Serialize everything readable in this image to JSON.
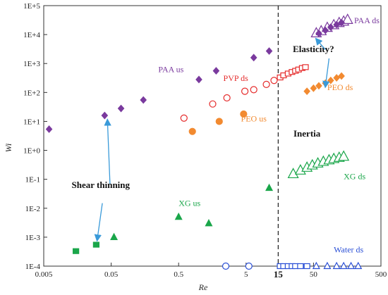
{
  "chart_data": {
    "type": "scatter",
    "xlabel": "Re",
    "ylabel": "Wi",
    "xscale": "log",
    "yscale": "log",
    "xlim": [
      0.005,
      500
    ],
    "ylim": [
      0.0001,
      100000
    ],
    "x_tick_labels": [
      "0.005",
      "0.05",
      "0.5",
      "5",
      "50",
      "500"
    ],
    "y_tick_labels": [
      "1E-4",
      "1E-3",
      "1E-2",
      "1E-1",
      "1E+0",
      "1E+1",
      "1E+2",
      "1E+3",
      "1E+4",
      "1E+5"
    ],
    "critical_re": {
      "value": 15,
      "label": "15",
      "style": "dashed"
    },
    "grid": false,
    "series": [
      {
        "name": "PAA us",
        "color": "#7a3a9e",
        "marker": "diamond",
        "filled": true,
        "points": [
          [
            0.006,
            5.4
          ],
          [
            0.04,
            16
          ],
          [
            0.07,
            28
          ],
          [
            0.15,
            55
          ],
          [
            1.0,
            280
          ],
          [
            1.8,
            560
          ],
          [
            6.5,
            1600
          ],
          [
            11,
            2700
          ]
        ]
      },
      {
        "name": "PAA ds",
        "color": "#7a3a9e",
        "marker": "triangle-large",
        "filled": false,
        "points": [
          [
            55,
            11000
          ],
          [
            65,
            13000
          ],
          [
            80,
            17000
          ],
          [
            100,
            21000
          ],
          [
            120,
            25000
          ],
          [
            140,
            28000
          ],
          [
            160,
            32000
          ]
        ]
      },
      {
        "name": "PAA ds filled",
        "color": "#7a3a9e",
        "marker": "diamond",
        "filled": true,
        "points": [
          [
            60,
            11000
          ],
          [
            75,
            14000
          ],
          [
            90,
            18000
          ],
          [
            110,
            22000
          ],
          [
            130,
            26000
          ]
        ]
      },
      {
        "name": "PVP ds",
        "color": "#e52b2b",
        "marker": "circle",
        "filled": false,
        "points": [
          [
            0.6,
            13
          ],
          [
            1.6,
            40
          ],
          [
            2.6,
            65
          ],
          [
            4.8,
            110
          ],
          [
            6.5,
            125
          ],
          [
            10,
            190
          ],
          [
            13,
            260
          ]
        ]
      },
      {
        "name": "PVP ds squares",
        "color": "#e52b2b",
        "marker": "square",
        "filled": false,
        "points": [
          [
            16,
            330
          ],
          [
            18,
            390
          ],
          [
            21,
            450
          ],
          [
            24,
            510
          ],
          [
            27,
            560
          ],
          [
            30,
            620
          ],
          [
            34,
            700
          ],
          [
            38,
            750
          ]
        ]
      },
      {
        "name": "PEO us",
        "color": "#f28a30",
        "marker": "circle",
        "filled": true,
        "points": [
          [
            0.8,
            4.5
          ],
          [
            2.0,
            10
          ],
          [
            4.6,
            18
          ]
        ]
      },
      {
        "name": "PEO ds",
        "color": "#f28a30",
        "marker": "diamond",
        "filled": true,
        "points": [
          [
            40,
            110
          ],
          [
            50,
            140
          ],
          [
            60,
            170
          ],
          [
            75,
            210
          ],
          [
            90,
            260
          ],
          [
            110,
            320
          ],
          [
            130,
            370
          ]
        ]
      },
      {
        "name": "XG us",
        "color": "#1aa64a",
        "marker": "triangle",
        "filled": true,
        "points": [
          [
            0.055,
            0.001
          ],
          [
            0.5,
            0.005
          ],
          [
            1.4,
            0.003
          ],
          [
            11,
            0.05
          ]
        ]
      },
      {
        "name": "XG ds",
        "color": "#1aa64a",
        "marker": "triangle-large",
        "filled": false,
        "points": [
          [
            25,
            0.15
          ],
          [
            32,
            0.2
          ],
          [
            40,
            0.25
          ],
          [
            48,
            0.3
          ],
          [
            58,
            0.35
          ],
          [
            70,
            0.4
          ],
          [
            85,
            0.45
          ],
          [
            100,
            0.5
          ],
          [
            120,
            0.55
          ],
          [
            140,
            0.6
          ]
        ]
      },
      {
        "name": "XG squares",
        "color": "#1aa64a",
        "marker": "square",
        "filled": true,
        "points": [
          [
            0.015,
            0.00033
          ],
          [
            0.03,
            0.00055
          ]
        ]
      },
      {
        "name": "Water ds",
        "color": "#2a4fd6",
        "marker": "circle",
        "filled": false,
        "points": [
          [
            2.5,
            0.0001
          ],
          [
            5.5,
            0.0001
          ]
        ]
      },
      {
        "name": "Water ds squares",
        "color": "#2a4fd6",
        "marker": "square",
        "filled": false,
        "points": [
          [
            16,
            0.0001
          ],
          [
            18,
            0.0001
          ],
          [
            21,
            0.0001
          ],
          [
            24,
            0.0001
          ],
          [
            27,
            0.0001
          ],
          [
            32,
            0.0001
          ],
          [
            40,
            0.0001
          ]
        ]
      },
      {
        "name": "Water ds triangles",
        "color": "#2a4fd6",
        "marker": "triangle",
        "filled": false,
        "points": [
          [
            55,
            0.0001
          ],
          [
            80,
            0.0001
          ],
          [
            110,
            0.0001
          ],
          [
            140,
            0.0001
          ],
          [
            180,
            0.0001
          ],
          [
            230,
            0.0001
          ]
        ]
      }
    ],
    "labels": [
      {
        "text": "PAA ds",
        "color": "#7a3a9e",
        "x": 200,
        "y": 25000
      },
      {
        "text": "PAA us",
        "color": "#7a3a9e",
        "x": 0.25,
        "y": 500
      },
      {
        "text": "PVP ds",
        "color": "#e52b2b",
        "x": 2.3,
        "y": 250
      },
      {
        "text": "PEO ds",
        "color": "#f28a30",
        "x": 80,
        "y": 120
      },
      {
        "text": "PEO us",
        "color": "#f28a30",
        "x": 4.2,
        "y": 10
      },
      {
        "text": "XG us",
        "color": "#1aa64a",
        "x": 0.5,
        "y": 0.012
      },
      {
        "text": "XG ds",
        "color": "#1aa64a",
        "x": 140,
        "y": 0.1
      },
      {
        "text": "Water ds",
        "color": "#2a4fd6",
        "x": 100,
        "y": 0.0003
      }
    ],
    "annotations": [
      {
        "text": "Shear thinning",
        "x": 0.035,
        "y": 0.05,
        "bold": true
      },
      {
        "text": "Elasticity?",
        "x": 50,
        "y": 2500,
        "bold": true
      },
      {
        "text": "Inertia",
        "x": 40,
        "y": 3,
        "bold": true
      }
    ]
  }
}
